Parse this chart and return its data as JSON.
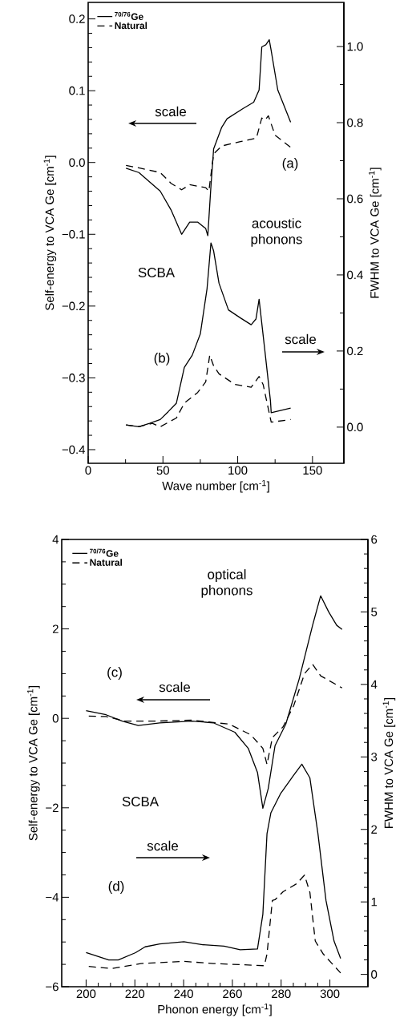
{
  "chart_data": [
    {
      "type": "line",
      "xlabel": "Wave number [cm$^{-1}$]",
      "ylabel": "Self-energy to VCA Ge [cm$^{-1}$]",
      "y2label": "FWHM to VCA Ge [cm$^{-1}$]",
      "xlim": [
        0,
        171
      ],
      "xticks": [
        0,
        50,
        100,
        150
      ],
      "ylim": [
        -0.419,
        0.223
      ],
      "yticks": [
        {
          "value": -0.4,
          "label": "−0.4"
        },
        {
          "value": -0.3,
          "label": "−0.3"
        },
        {
          "value": -0.2,
          "label": "−0.2"
        },
        {
          "value": -0.1,
          "label": "−0.1"
        },
        {
          "value": 0,
          "label": "0.0"
        },
        0.1,
        0.2
      ],
      "y2lim": [
        -0.095,
        1.116
      ],
      "y2ticks": [
        {
          "value": 0,
          "label": "0.0"
        },
        0.2,
        0.4,
        0.6,
        0.8,
        {
          "value": 1,
          "label": "1.0"
        }
      ],
      "legend": "top left",
      "annotations": [
        "scale",
        "(a)",
        "acoustic phonons",
        "SCBA",
        "(b)",
        "scale"
      ],
      "series": [
        {
          "name": "$^{70/76}$Ge",
          "color": "#000000",
          "line_style": "solid",
          "x": [
            25.3,
            33.9,
            48.2,
            55.4,
            62.5,
            67.9,
            73.2,
            78.6,
            80.0,
            82.1,
            83.9,
            89.3,
            92.9,
            98.2,
            103.5,
            110.7,
            114.3,
            116.1,
            118.8,
            121.1,
            122.3,
            126.8,
            135.4
          ],
          "values": [
            -0.008,
            -0.014,
            -0.04,
            -0.066,
            -0.1,
            -0.083,
            -0.083,
            -0.092,
            -0.102,
            -0.033,
            0.019,
            0.049,
            0.061,
            0.068,
            0.075,
            0.084,
            0.101,
            0.161,
            0.164,
            0.171,
            0.157,
            0.101,
            0.056
          ]
        },
        {
          "name": "Natural",
          "color": "#000000",
          "line_style": "dashed",
          "x": [
            25.3,
            35.0,
            48.2,
            55.4,
            62.5,
            67.9,
            78.6,
            80.7,
            83.9,
            89.3,
            101.8,
            112.5,
            116.1,
            118.2,
            120.5,
            125.0,
            135.4
          ],
          "values": [
            -0.004,
            -0.008,
            -0.014,
            -0.029,
            -0.038,
            -0.031,
            -0.035,
            -0.04,
            0.012,
            0.023,
            0.029,
            0.034,
            0.062,
            0.059,
            0.065,
            0.038,
            0.021
          ]
        },
        {
          "color": "#000000",
          "line_style": "solid",
          "axis": "y2",
          "x": [
            25.3,
            33.9,
            41.1,
            48.2,
            53.6,
            59.0,
            64.3,
            69.6,
            75.0,
            79.5,
            82.1,
            83.9,
            87.5,
            93.8,
            101.8,
            109.0,
            112.2,
            114.3,
            117.9,
            121.9,
            122.4,
            135.4
          ],
          "values": [
            0.006,
            0.001,
            0.01,
            0.02,
            0.041,
            0.063,
            0.157,
            0.189,
            0.245,
            0.364,
            0.484,
            0.463,
            0.378,
            0.308,
            0.287,
            0.269,
            0.284,
            0.336,
            0.21,
            0.069,
            0.038,
            0.05
          ]
        },
        {
          "color": "#000000",
          "line_style": "dashed",
          "axis": "y2",
          "x": [
            25.3,
            33.9,
            42.9,
            48.2,
            59.0,
            64.3,
            73.2,
            78.6,
            81.3,
            83.9,
            87.5,
            98.2,
            109.0,
            114.3,
            117.0,
            122.4,
            135.4
          ],
          "values": [
            0.006,
            0.001,
            0.01,
            0.001,
            0.024,
            0.063,
            0.091,
            0.119,
            0.189,
            0.161,
            0.14,
            0.112,
            0.105,
            0.133,
            0.112,
            0.013,
            0.02
          ]
        }
      ]
    },
    {
      "type": "line",
      "xlabel": "Phonon energy   [cm$^{-1}$]",
      "ylabel": "Self-energy to VCA Ge [cm$^{-1}$]",
      "y2label": "FWHM to VCA Ge [cm$^{-1}$]",
      "xlim": [
        190,
        315.6
      ],
      "xticks": [
        200,
        220,
        240,
        260,
        280,
        300
      ],
      "ylim": [
        -6,
        4
      ],
      "yticks": [
        {
          "value": -6,
          "label": "−6"
        },
        {
          "value": -4,
          "label": "−4"
        },
        {
          "value": -2,
          "label": "−2"
        },
        0,
        2,
        4
      ],
      "y2lim": [
        -0.17,
        6
      ],
      "y2ticks": [
        0,
        1,
        2,
        3,
        4,
        5,
        6
      ],
      "legend": "top left",
      "annotations": [
        "optical phonons",
        "(c)",
        "scale",
        "SCBA",
        "scale",
        "(d)"
      ],
      "series": [
        {
          "name": "$^{70/76}$Ge",
          "color": "#000000",
          "line_style": "solid",
          "x": [
            200,
            208.2,
            214.8,
            221.4,
            230.2,
            243.4,
            252.2,
            261.0,
            266.5,
            270.3,
            272.5,
            274.7,
            277.5,
            281.9,
            287.4,
            292.9,
            296.2,
            299.5,
            302.8,
            305.0
          ],
          "values": [
            0.17,
            0.08,
            -0.06,
            -0.16,
            -0.1,
            -0.06,
            -0.1,
            -0.31,
            -0.67,
            -1.21,
            -2.01,
            -1.57,
            -0.61,
            -0.13,
            0.88,
            2.08,
            2.74,
            2.38,
            2.08,
            1.99
          ]
        },
        {
          "name": "Natural",
          "color": "#000000",
          "line_style": "dashed",
          "x": [
            201.1,
            208.2,
            215.9,
            230.2,
            243.4,
            258.8,
            267.6,
            272.5,
            274.2,
            276.4,
            280.8,
            285.2,
            289.6,
            292.9,
            296.2,
            305.0
          ],
          "values": [
            0.05,
            0.04,
            -0.06,
            -0.06,
            -0.04,
            -0.13,
            -0.37,
            -0.67,
            -1.03,
            -0.43,
            -0.19,
            0.29,
            1.0,
            1.21,
            0.95,
            0.68
          ]
        },
        {
          "color": "#000000",
          "line_style": "solid",
          "axis": "y2",
          "x": [
            200,
            209.3,
            213.2,
            220.3,
            224.2,
            230.2,
            240.1,
            247.8,
            256.6,
            263.2,
            270.3,
            272.5,
            274.2,
            275.8,
            279.7,
            285.2,
            288.5,
            291.8,
            295.1,
            298.4,
            301.7,
            304.4
          ],
          "values": [
            0.3,
            0.2,
            0.2,
            0.3,
            0.38,
            0.42,
            0.45,
            0.41,
            0.39,
            0.34,
            0.35,
            0.83,
            1.94,
            2.23,
            2.49,
            2.75,
            2.9,
            2.71,
            1.94,
            1.02,
            0.46,
            0.22
          ]
        },
        {
          "color": "#000000",
          "line_style": "dashed",
          "axis": "y2",
          "x": [
            201.1,
            210.5,
            222.5,
            240.1,
            252.2,
            273.1,
            274.2,
            276.4,
            277.5,
            280.8,
            286.3,
            289.6,
            291.8,
            294.0,
            297.3,
            304.4
          ],
          "values": [
            0.11,
            0.08,
            0.15,
            0.18,
            0.15,
            0.12,
            0.28,
            1.02,
            1.03,
            1.14,
            1.25,
            1.37,
            1.13,
            0.46,
            0.28,
            0.02
          ]
        }
      ]
    }
  ]
}
